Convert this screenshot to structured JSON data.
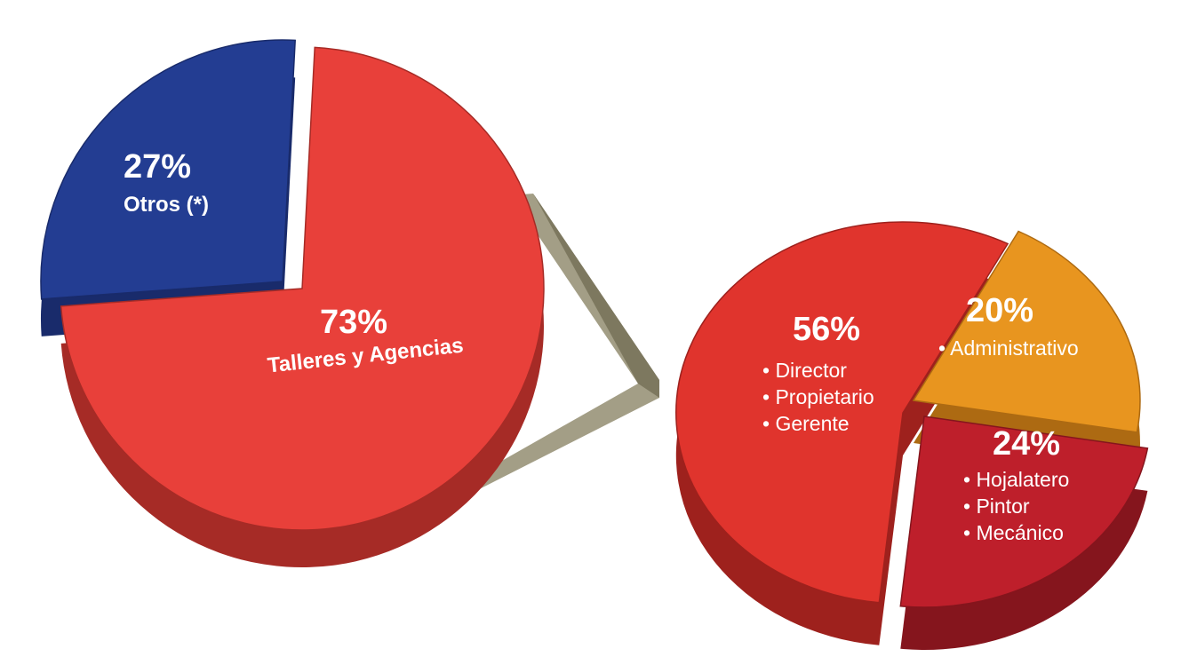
{
  "chart_data": [
    {
      "type": "pie",
      "slices": [
        {
          "percent_label": "73%",
          "value": 73,
          "lines": [
            "Talleres y Agencias"
          ],
          "color": "#e8403a",
          "side_color": "#a62b26"
        },
        {
          "percent_label": "27%",
          "value": 27,
          "lines": [
            "Otros (*)"
          ],
          "color": "#233d92",
          "side_color": "#192b6b"
        }
      ]
    },
    {
      "type": "pie",
      "slices": [
        {
          "percent_label": "56%",
          "value": 56,
          "lines": [
            "• Director",
            "• Propietario",
            "• Gerente"
          ],
          "color": "#e0342d",
          "side_color": "#9e211d"
        },
        {
          "percent_label": "20%",
          "value": 20,
          "lines": [
            "• Administrativo"
          ],
          "color": "#e8951f",
          "side_color": "#ad6a12"
        },
        {
          "percent_label": "24%",
          "value": 24,
          "lines": [
            "• Hojalatero",
            "• Pintor",
            "• Mecánico"
          ],
          "color": "#be1f2b",
          "side_color": "#85151d"
        }
      ]
    }
  ],
  "connector_color": "#a39e86"
}
